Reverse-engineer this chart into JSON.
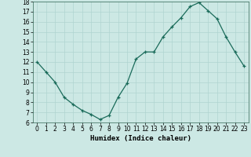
{
  "x": [
    0,
    1,
    2,
    3,
    4,
    5,
    6,
    7,
    8,
    9,
    10,
    11,
    12,
    13,
    14,
    15,
    16,
    17,
    18,
    19,
    20,
    21,
    22,
    23
  ],
  "y": [
    12,
    11,
    10,
    8.5,
    7.8,
    7.2,
    6.8,
    6.3,
    6.7,
    8.5,
    9.9,
    12.3,
    13.0,
    13.0,
    14.5,
    15.5,
    16.4,
    17.5,
    17.9,
    17.1,
    16.3,
    14.5,
    13.0,
    11.6
  ],
  "line_color": "#1a6b5a",
  "marker_color": "#1a6b5a",
  "background_color": "#cce8e4",
  "grid_color": "#b0d4d0",
  "xlabel": "Humidex (Indice chaleur)",
  "ylim": [
    6,
    18
  ],
  "xlim": [
    -0.5,
    23.5
  ],
  "yticks": [
    6,
    7,
    8,
    9,
    10,
    11,
    12,
    13,
    14,
    15,
    16,
    17,
    18
  ],
  "xticks": [
    0,
    1,
    2,
    3,
    4,
    5,
    6,
    7,
    8,
    9,
    10,
    11,
    12,
    13,
    14,
    15,
    16,
    17,
    18,
    19,
    20,
    21,
    22,
    23
  ],
  "label_fontsize": 6.5,
  "tick_fontsize": 5.5
}
